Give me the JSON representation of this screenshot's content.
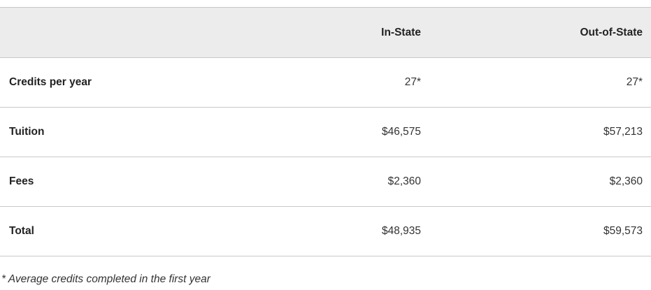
{
  "table": {
    "headers": [
      "",
      "In-State",
      "Out-of-State"
    ],
    "rows": [
      {
        "label": "Credits per year",
        "in_state": "27*",
        "out_of_state": "27*"
      },
      {
        "label": "Tuition",
        "in_state": "$46,575",
        "out_of_state": "$57,213"
      },
      {
        "label": "Fees",
        "in_state": "$2,360",
        "out_of_state": "$2,360"
      },
      {
        "label": "Total",
        "in_state": "$48,935",
        "out_of_state": "$59,573"
      }
    ]
  },
  "footnote": "* Average credits completed in the first year"
}
